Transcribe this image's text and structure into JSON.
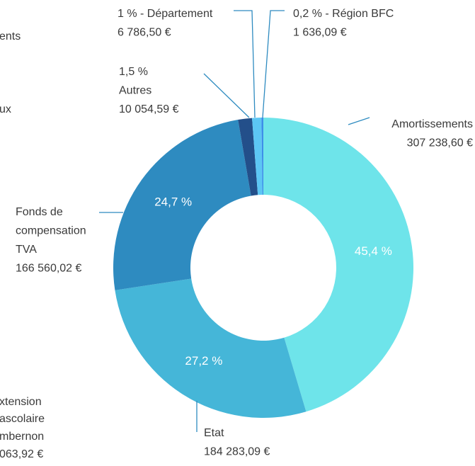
{
  "chart_data": {
    "type": "donut",
    "labels": [
      [
        "Amortissements"
      ],
      [
        "Etat"
      ],
      [
        "Fonds de",
        "compensation",
        "TVA"
      ],
      [
        "1,5 %",
        "Autres"
      ],
      [
        "1 % - Département"
      ],
      [
        "0,2 % - Région BFC"
      ]
    ],
    "values": [
      45.4,
      27.2,
      24.7,
      1.5,
      1,
      0.2
    ],
    "value_labels": [
      "45,4 %",
      "27,2 %",
      "24,7 %",
      null,
      null,
      null
    ],
    "amounts": [
      307238.6,
      184283.09,
      166560.02,
      10054.59,
      6786.5,
      1636.09
    ],
    "amount_labels": [
      "307 238,60 €",
      "184 283,09 €",
      "166 560,02 €",
      "10 054,59 €",
      "6 786,50 €",
      "1 636,09 €"
    ],
    "colors": [
      "#6ee4ea",
      "#45b6d8",
      "#2e8bc0",
      "#234f8a",
      "#5cc6f4",
      "#3d8fe8"
    ],
    "background_fragments": [
      "ents",
      "ux",
      "xtension",
      "ascolaire",
      "mbernon",
      "063,92 €"
    ]
  }
}
